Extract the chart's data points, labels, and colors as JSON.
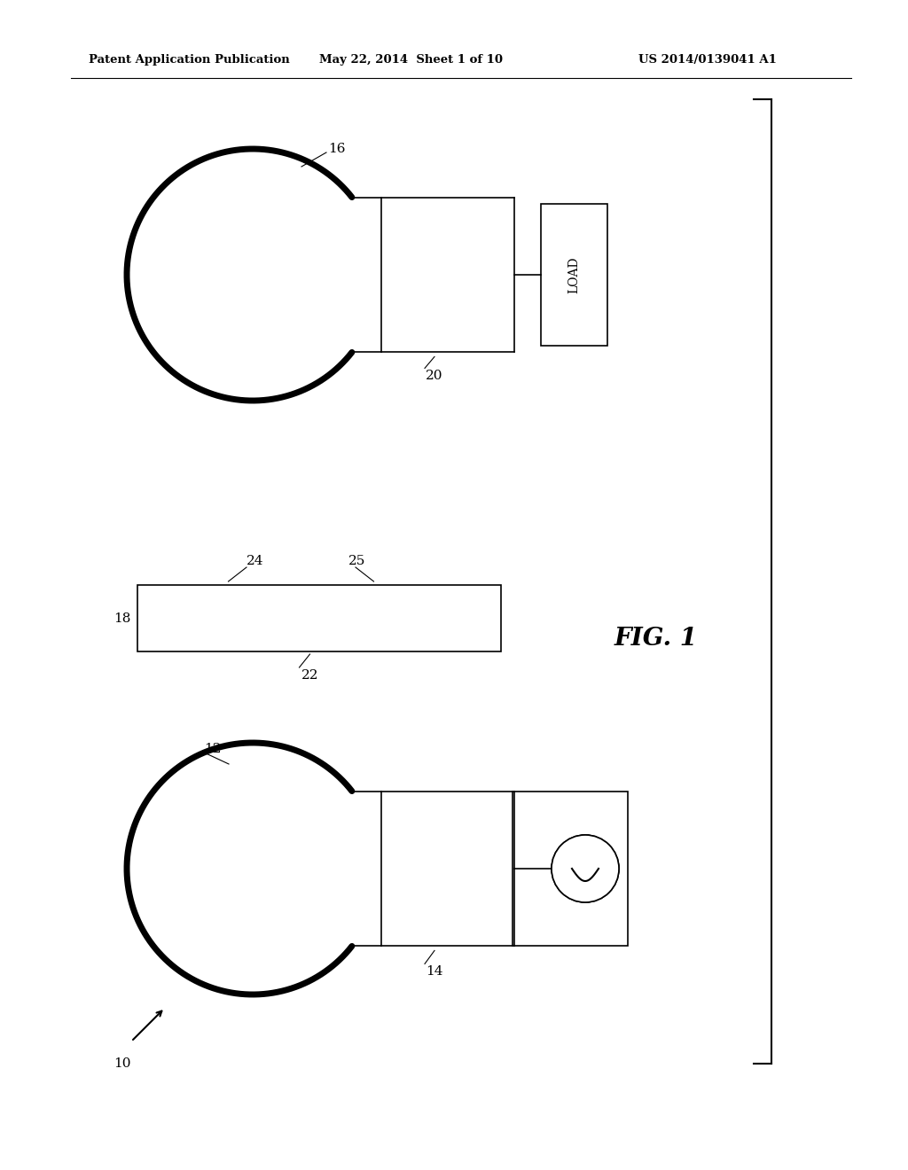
{
  "background_color": "#ffffff",
  "header_left": "Patent Application Publication",
  "header_center": "May 22, 2014  Sheet 1 of 10",
  "header_right": "US 2014/0139041 A1",
  "fig_label": "FIG. 1"
}
